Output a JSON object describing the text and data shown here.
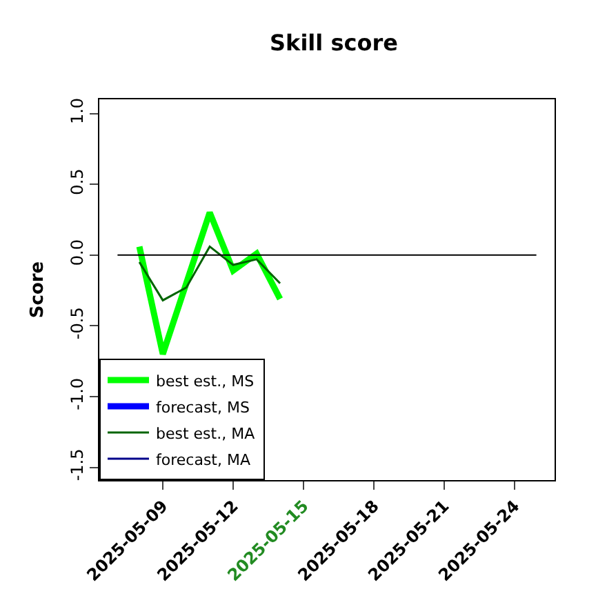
{
  "chart_data": {
    "type": "line",
    "title": "Skill score",
    "ylabel": "Score",
    "x": [
      "2025-05-08",
      "2025-05-09",
      "2025-05-10",
      "2025-05-11",
      "2025-05-12",
      "2025-05-13",
      "2025-05-14"
    ],
    "series": [
      {
        "name": "best est., MS",
        "color": "#00ff00",
        "values": [
          0.06,
          -0.7,
          -0.2,
          0.3,
          -0.11,
          0.01,
          -0.31
        ]
      },
      {
        "name": "forecast, MS",
        "color": "#0000ff",
        "values": [
          null,
          null,
          null,
          null,
          null,
          null,
          null
        ]
      },
      {
        "name": "best est., MA",
        "color": "#006400",
        "values": [
          -0.05,
          -0.32,
          -0.23,
          0.06,
          -0.07,
          -0.03,
          -0.2
        ]
      },
      {
        "name": "forecast, MA",
        "color": "#00008b",
        "values": [
          null,
          null,
          null,
          null,
          null,
          null,
          null
        ]
      }
    ],
    "xlim": [
      "2025-05-06T07:00",
      "2025-05-25T17:00"
    ],
    "xticks": [
      "2025-05-09",
      "2025-05-12",
      "2025-05-15",
      "2025-05-18",
      "2025-05-21",
      "2025-05-24"
    ],
    "ylim": [
      -1.59,
      1.1
    ],
    "yticks": [
      -1.5,
      {
        "value": -1,
        "label": "-1.0"
      },
      -0.5,
      {
        "value": 0,
        "label": "0.0"
      },
      0.5,
      {
        "value": 1,
        "label": "1.0"
      }
    ],
    "ref_lines": [
      {
        "axis": "y",
        "value": 0,
        "color": "#000000"
      }
    ],
    "legend": "bottom left",
    "line_style": "solid",
    "marker": "none"
  }
}
